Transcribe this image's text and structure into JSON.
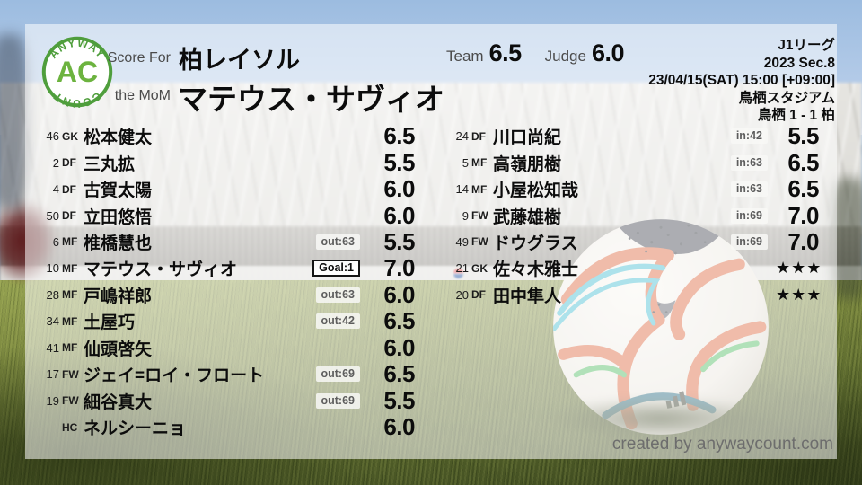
{
  "logo": {
    "top_text": "ANYWAY",
    "center_text": "AC",
    "bottom_text": "COUNT"
  },
  "header": {
    "score_for_label": "Score For",
    "team_name": "柏レイソル",
    "mom_label": "the MoM",
    "mom_name": "マテウス・サヴィオ",
    "team_label": "Team",
    "team_score": "6.5",
    "judge_label": "Judge",
    "judge_score": "6.0",
    "match_info": [
      "J1リーグ",
      "2023 Sec.8",
      "23/04/15(SAT) 15:00 [+09:00]",
      "鳥栖スタジアム",
      "鳥栖 1 - 1 柏"
    ]
  },
  "players_left": [
    {
      "num": "46",
      "pos": "GK",
      "name": "松本健太",
      "badge": "",
      "rating": "6.5"
    },
    {
      "num": "2",
      "pos": "DF",
      "name": "三丸拡",
      "badge": "",
      "rating": "5.5"
    },
    {
      "num": "4",
      "pos": "DF",
      "name": "古賀太陽",
      "badge": "",
      "rating": "6.0"
    },
    {
      "num": "50",
      "pos": "DF",
      "name": "立田悠悟",
      "badge": "",
      "rating": "6.0"
    },
    {
      "num": "6",
      "pos": "MF",
      "name": "椎橋慧也",
      "badge": "out:63",
      "rating": "5.5"
    },
    {
      "num": "10",
      "pos": "MF",
      "name": "マテウス・サヴィオ",
      "badge": "Goal:1",
      "badge_type": "goal",
      "rating": "7.0"
    },
    {
      "num": "28",
      "pos": "MF",
      "name": "戸嶋祥郎",
      "badge": "out:63",
      "rating": "6.0"
    },
    {
      "num": "34",
      "pos": "MF",
      "name": "土屋巧",
      "badge": "out:42",
      "rating": "6.5"
    },
    {
      "num": "41",
      "pos": "MF",
      "name": "仙頭啓矢",
      "badge": "",
      "rating": "6.0"
    },
    {
      "num": "17",
      "pos": "FW",
      "name": "ジェイ=ロイ・フロート",
      "badge": "out:69",
      "rating": "6.5"
    },
    {
      "num": "19",
      "pos": "FW",
      "name": "細谷真大",
      "badge": "out:69",
      "rating": "5.5"
    },
    {
      "num": "",
      "pos": "HC",
      "name": "ネルシーニョ",
      "badge": "",
      "rating": "6.0"
    }
  ],
  "players_right": [
    {
      "num": "24",
      "pos": "DF",
      "name": "川口尚紀",
      "badge": "in:42",
      "rating": "5.5"
    },
    {
      "num": "5",
      "pos": "MF",
      "name": "高嶺朋樹",
      "badge": "in:63",
      "rating": "6.5"
    },
    {
      "num": "14",
      "pos": "MF",
      "name": "小屋松知哉",
      "badge": "in:63",
      "rating": "6.5"
    },
    {
      "num": "9",
      "pos": "FW",
      "name": "武藤雄樹",
      "badge": "in:69",
      "rating": "7.0"
    },
    {
      "num": "49",
      "pos": "FW",
      "name": "ドウグラス",
      "badge": "in:69",
      "rating": "7.0"
    },
    {
      "num": "21",
      "pos": "GK",
      "name": "佐々木雅士",
      "badge": "",
      "rating": "★★★"
    },
    {
      "num": "20",
      "pos": "DF",
      "name": "田中隼人",
      "badge": "",
      "rating": "★★★"
    }
  ],
  "footer": {
    "credit": "created by anywaycount.com"
  },
  "colors": {
    "logo_green": "#4f9e3c",
    "logo_text_green": "#6cb33f",
    "text": "#0c0c0c",
    "label_gray": "#4b4b4b",
    "badge_text": "#5d5d5d",
    "panel_overlay": "rgba(255,255,255,0.55)"
  }
}
